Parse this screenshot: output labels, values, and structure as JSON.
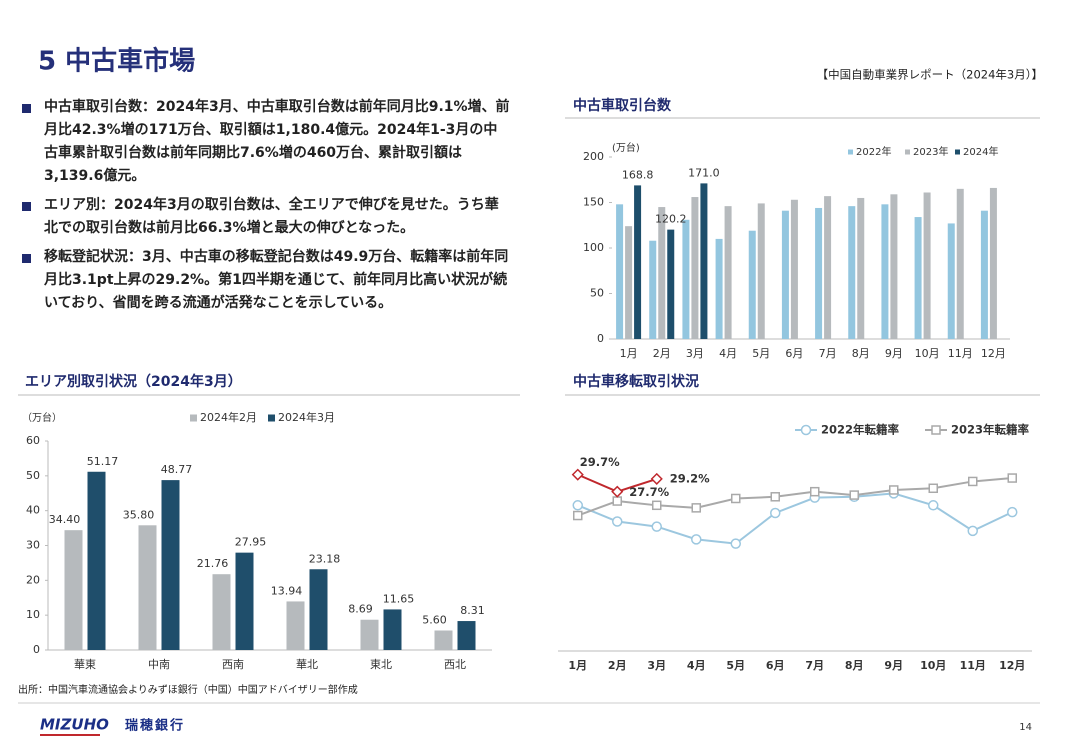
{
  "header": {
    "title": "5 中古車市場",
    "report": "【中国自動車業界レポート（2024年3月）】"
  },
  "bullets": [
    "中古車取引台数：2024年3月、中古車取引台数は前年同月比9.1%増、前月比42.3%増の171万台、取引額は1,180.4億元。2024年1-3月の中古車累計取引台数は前年同期比7.6%増の460万台、累計取引額は3,139.6億元。",
    "エリア別：2024年3月の取引台数は、全エリアで伸びを見せた。うち華北での取引台数は前月比66.3%増と最大の伸びとなった。",
    "移転登記状況：3月、中古車の移転登記台数は49.9万台、転籍率は前年同月比3.1pt上昇の29.2%。第1四半期を通じて、前年同月比高い状況が続いており、省間を跨る流通が活発なことを示している。"
  ],
  "chart_data": [
    {
      "type": "bar",
      "title": "中古車取引台数",
      "unit": "(万台)",
      "categories": [
        "1月",
        "2月",
        "3月",
        "4月",
        "5月",
        "6月",
        "7月",
        "8月",
        "9月",
        "10月",
        "11月",
        "12月"
      ],
      "series": [
        {
          "name": "2022年",
          "color": "#93c6df",
          "values": [
            148,
            108,
            131,
            110,
            119,
            141,
            144,
            146,
            148,
            134,
            127,
            141
          ]
        },
        {
          "name": "2023年",
          "color": "#b6babd",
          "values": [
            124,
            145,
            156,
            146,
            149,
            153,
            157,
            155,
            159,
            161,
            165,
            166
          ]
        },
        {
          "name": "2024年",
          "color": "#1d4e6b",
          "values": [
            168.8,
            120.2,
            171.0,
            null,
            null,
            null,
            null,
            null,
            null,
            null,
            null,
            null
          ],
          "value_labels": [
            "168.8",
            "120.2",
            "171.0",
            null,
            null,
            null,
            null,
            null,
            null,
            null,
            null,
            null
          ]
        }
      ],
      "ylim": [
        0,
        200
      ],
      "yticks": [
        0,
        50,
        100,
        150,
        200
      ],
      "grid": false
    },
    {
      "type": "bar",
      "title": "エリア別取引状況（2024年3月）",
      "unit": "（万台）",
      "categories": [
        "華東",
        "中南",
        "西南",
        "華北",
        "東北",
        "西北"
      ],
      "series": [
        {
          "name": "2024年2月",
          "color": "#b6babd",
          "values": [
            34.4,
            35.8,
            21.76,
            13.94,
            8.69,
            5.6
          ],
          "value_labels": [
            "34.40",
            "35.80",
            "21.76",
            "13.94",
            "8.69",
            "5.60"
          ]
        },
        {
          "name": "2024年3月",
          "color": "#1f4e6b",
          "values": [
            51.17,
            48.77,
            27.95,
            23.18,
            11.65,
            8.31
          ],
          "value_labels": [
            "51.17",
            "48.77",
            "27.95",
            "23.18",
            "11.65",
            "8.31"
          ]
        }
      ],
      "ylim": [
        0,
        60
      ],
      "yticks": [
        0,
        10,
        20,
        30,
        40,
        50,
        60
      ],
      "grid": false
    },
    {
      "type": "line",
      "title": "中古車移転取引状況",
      "categories": [
        "1月",
        "2月",
        "3月",
        "4月",
        "5月",
        "6月",
        "7月",
        "8月",
        "9月",
        "10月",
        "11月",
        "12月"
      ],
      "series": [
        {
          "name": "2022年転籍率",
          "color": "#9cc7df",
          "marker": "circle",
          "values": [
            26.1,
            24.2,
            23.6,
            22.1,
            21.6,
            25.2,
            27.0,
            27.1,
            27.5,
            26.1,
            23.1,
            25.3
          ]
        },
        {
          "name": "2023年転籍率",
          "color": "#a9a9a9",
          "marker": "square",
          "values": [
            24.9,
            26.6,
            26.1,
            25.8,
            26.9,
            27.1,
            27.7,
            27.3,
            27.9,
            28.1,
            28.9,
            29.3
          ]
        },
        {
          "color": "#c0282d",
          "marker": "diamond",
          "values": [
            29.7,
            27.7,
            29.2,
            null,
            null,
            null,
            null,
            null,
            null,
            null,
            null,
            null
          ],
          "value_labels": [
            "29.7%",
            "27.7%",
            "29.2%",
            null,
            null,
            null,
            null,
            null,
            null,
            null,
            null,
            null
          ]
        }
      ],
      "ylim": [
        9,
        34
      ],
      "grid": false
    }
  ],
  "footer": {
    "source": "出所：中国汽車流通協会よりみずほ銀行（中国）中国アドバイザリー部作成",
    "logo": "MIZUHO",
    "bank": "瑞穂銀行",
    "page": "14"
  }
}
